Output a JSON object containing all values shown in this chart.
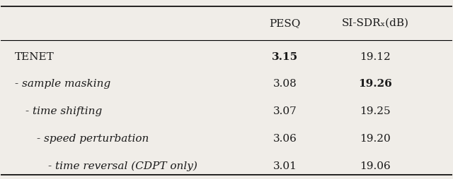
{
  "columns": [
    "",
    "PESQ",
    "SI-SDRₓ(dB)"
  ],
  "rows": [
    {
      "label": "TENET",
      "pesq": "3.15",
      "sisdr": "19.12",
      "pesq_bold": true,
      "sisdr_bold": false,
      "label_italic": false,
      "label_indent": 0
    },
    {
      "label": "- sample masking",
      "pesq": "3.08",
      "sisdr": "19.26",
      "pesq_bold": false,
      "sisdr_bold": true,
      "label_italic": true,
      "label_indent": 0
    },
    {
      "label": "  - time shifting",
      "pesq": "3.07",
      "sisdr": "19.25",
      "pesq_bold": false,
      "sisdr_bold": false,
      "label_italic": true,
      "label_indent": 1
    },
    {
      "label": "    - speed perturbation",
      "pesq": "3.06",
      "sisdr": "19.20",
      "pesq_bold": false,
      "sisdr_bold": false,
      "label_italic": true,
      "label_indent": 2
    },
    {
      "label": "      - time reversal (CDPT only)",
      "pesq": "3.01",
      "sisdr": "19.06",
      "pesq_bold": false,
      "sisdr_bold": false,
      "label_italic": true,
      "label_indent": 3
    }
  ],
  "col_header_pesq": "PESQ",
  "col_header_sisdr": "SI-SDRₓ(dB)",
  "bg_color": "#f0ede8",
  "text_color": "#1a1a1a",
  "line_color": "#000000",
  "header_fontsize": 11,
  "body_fontsize": 11
}
